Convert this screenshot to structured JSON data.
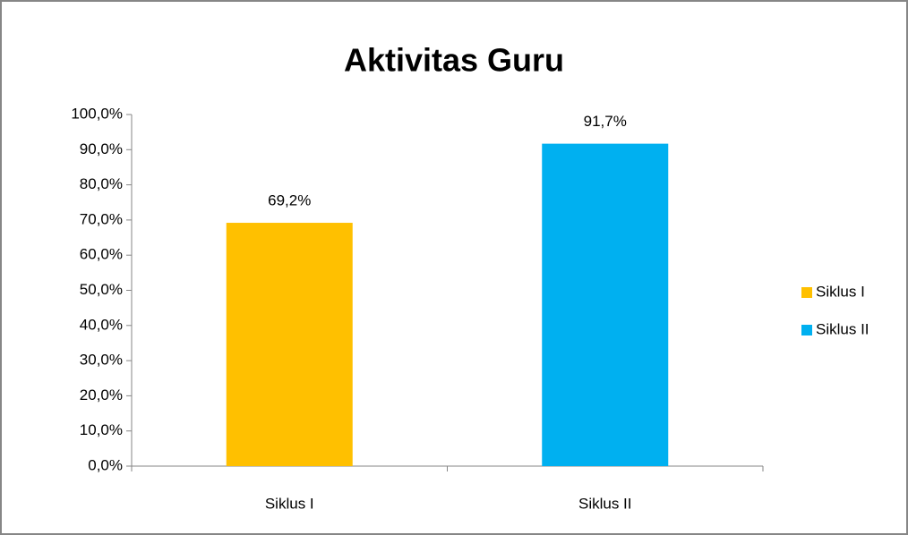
{
  "chart_data": {
    "type": "bar",
    "title": "Aktivitas Guru",
    "categories": [
      "Siklus I",
      "Siklus II"
    ],
    "values": [
      69.2,
      91.7
    ],
    "value_labels": [
      "69,2%",
      "91,7%"
    ],
    "colors": [
      "#ffc000",
      "#00b0f0"
    ],
    "ylim": [
      0,
      100
    ],
    "yticks": [
      {
        "value": 0,
        "label": "0,0%"
      },
      {
        "value": 10,
        "label": "10,0%"
      },
      {
        "value": 20,
        "label": "20,0%"
      },
      {
        "value": 30,
        "label": "30,0%"
      },
      {
        "value": 40,
        "label": "40,0%"
      },
      {
        "value": 50,
        "label": "50,0%"
      },
      {
        "value": 60,
        "label": "60,0%"
      },
      {
        "value": 70,
        "label": "70,0%"
      },
      {
        "value": 80,
        "label": "80,0%"
      },
      {
        "value": 90,
        "label": "90,0%"
      },
      {
        "value": 100,
        "label": "100,0%"
      }
    ],
    "legend": "right"
  }
}
